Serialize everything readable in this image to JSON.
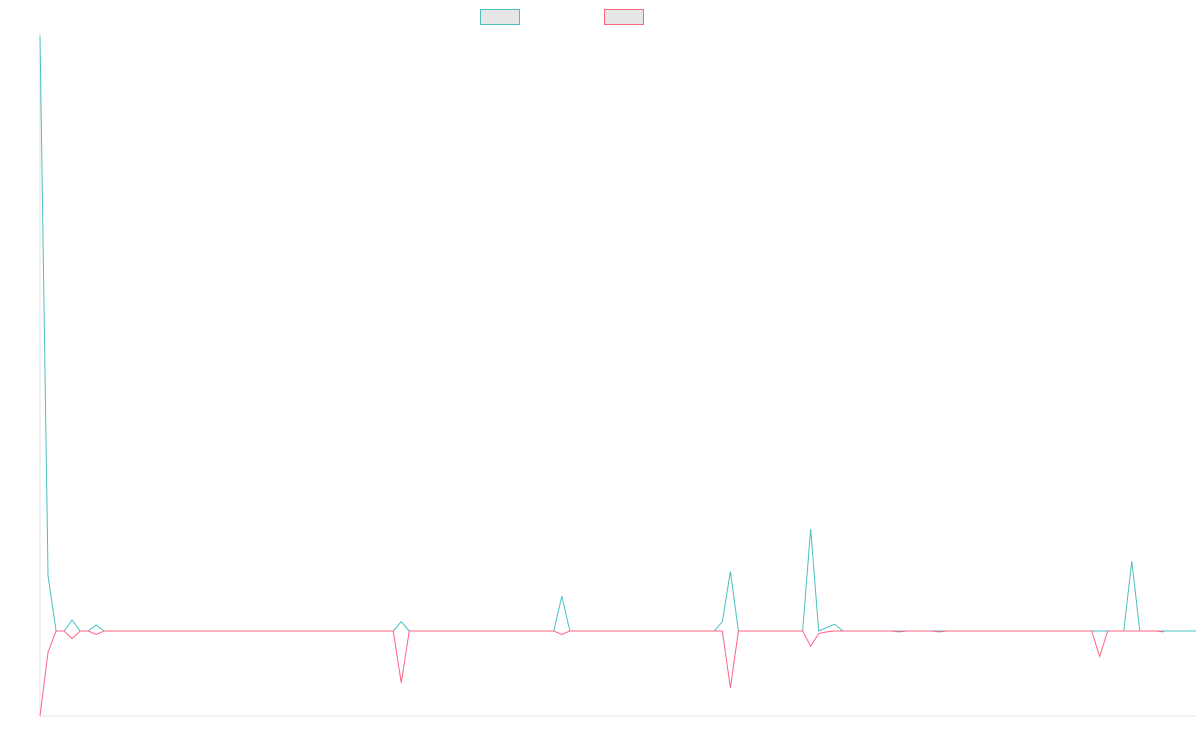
{
  "chart_data": {
    "type": "line",
    "title": "",
    "xlabel": "",
    "ylabel": "",
    "legend_position": "top-center",
    "grid": false,
    "ylim": [
      -100,
      700
    ],
    "series": [
      {
        "color": "#4bc0c0",
        "values": [
          700,
          65,
          0,
          0,
          13,
          0,
          0,
          7,
          0,
          0,
          0,
          0,
          0,
          0,
          0,
          0,
          0,
          0,
          0,
          0,
          0,
          0,
          0,
          0,
          0,
          0,
          0,
          0,
          0,
          0,
          0,
          0,
          0,
          0,
          0,
          0,
          0,
          0,
          0,
          0,
          0,
          0,
          0,
          0,
          0,
          11,
          0,
          0,
          0,
          0,
          0,
          0,
          0,
          0,
          0,
          0,
          0,
          0,
          0,
          0,
          0,
          0,
          0,
          0,
          0,
          41,
          0,
          0,
          0,
          0,
          0,
          0,
          0,
          0,
          0,
          0,
          0,
          0,
          0,
          0,
          0,
          0,
          0,
          0,
          0,
          11,
          70,
          0,
          0,
          0,
          0,
          0,
          0,
          0,
          0,
          0,
          120,
          0,
          4,
          8,
          0,
          0,
          0,
          0,
          0,
          0,
          0,
          0,
          0,
          0,
          0,
          0,
          0,
          0,
          0,
          0,
          0,
          0,
          0,
          0,
          0,
          0,
          0,
          0,
          0,
          0,
          0,
          0,
          0,
          0,
          0,
          0,
          0,
          0,
          0,
          0,
          82,
          0,
          0,
          0,
          0,
          0,
          0,
          0,
          0
        ]
      },
      {
        "color": "#ff6384",
        "values": [
          -100,
          -25,
          0,
          0,
          -9,
          0,
          0,
          -4,
          0,
          0,
          0,
          0,
          0,
          0,
          0,
          0,
          0,
          0,
          0,
          0,
          0,
          0,
          0,
          0,
          0,
          0,
          0,
          0,
          0,
          0,
          0,
          0,
          0,
          0,
          0,
          0,
          0,
          0,
          0,
          0,
          0,
          0,
          0,
          0,
          0,
          -61,
          0,
          0,
          0,
          0,
          0,
          0,
          0,
          0,
          0,
          0,
          0,
          0,
          0,
          0,
          0,
          0,
          0,
          0,
          0,
          -4,
          0,
          0,
          0,
          0,
          0,
          0,
          0,
          0,
          0,
          0,
          0,
          0,
          0,
          0,
          0,
          0,
          0,
          0,
          0,
          0,
          -67,
          0,
          0,
          0,
          0,
          0,
          0,
          0,
          0,
          0,
          -18,
          -3,
          -1,
          0,
          0,
          0,
          0,
          0,
          0,
          0,
          0,
          -1,
          0,
          0,
          0,
          0,
          -1,
          0,
          0,
          0,
          0,
          0,
          0,
          0,
          0,
          0,
          0,
          0,
          0,
          0,
          0,
          0,
          0,
          0,
          0,
          0,
          -30,
          0,
          0,
          0,
          0,
          0,
          0,
          0,
          -1
        ]
      }
    ]
  }
}
